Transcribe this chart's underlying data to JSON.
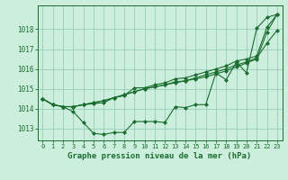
{
  "title": "Graphe pression niveau de la mer (hPa)",
  "background_color": "#cceedd",
  "grid_color": "#99ccbb",
  "line_color": "#1a6e2e",
  "x_ticks": [
    0,
    1,
    2,
    3,
    4,
    5,
    6,
    7,
    8,
    9,
    10,
    11,
    12,
    13,
    14,
    15,
    16,
    17,
    18,
    19,
    20,
    21,
    22,
    23
  ],
  "y_ticks": [
    1013,
    1014,
    1015,
    1016,
    1017,
    1018
  ],
  "ylim": [
    1012.4,
    1019.2
  ],
  "xlim": [
    -0.5,
    23.5
  ],
  "series": [
    [
      1014.5,
      1014.2,
      1014.1,
      1013.85,
      1013.3,
      1012.75,
      1012.7,
      1012.8,
      1012.8,
      1013.35,
      1013.35,
      1013.35,
      1013.3,
      1014.1,
      1014.05,
      1014.2,
      1014.2,
      1015.8,
      1015.45,
      1016.35,
      1015.8,
      1018.05,
      1018.6,
      1018.75
    ],
    [
      1014.5,
      1014.2,
      1014.1,
      1014.1,
      1014.2,
      1014.25,
      1014.3,
      1014.55,
      1014.65,
      1015.05,
      1015.05,
      1015.2,
      1015.3,
      1015.5,
      1015.55,
      1015.7,
      1015.85,
      1016.0,
      1016.15,
      1016.4,
      1016.5,
      1016.65,
      1018.1,
      1018.75
    ],
    [
      1014.5,
      1014.2,
      1014.1,
      1014.1,
      1014.2,
      1014.3,
      1014.4,
      1014.55,
      1014.7,
      1014.85,
      1015.0,
      1015.1,
      1015.2,
      1015.35,
      1015.4,
      1015.55,
      1015.7,
      1015.85,
      1016.0,
      1016.2,
      1016.35,
      1016.55,
      1017.3,
      1017.95
    ],
    [
      1014.5,
      1014.2,
      1014.1,
      1014.1,
      1014.2,
      1014.3,
      1014.4,
      1014.55,
      1014.7,
      1014.85,
      1015.0,
      1015.1,
      1015.2,
      1015.3,
      1015.4,
      1015.5,
      1015.6,
      1015.75,
      1015.9,
      1016.1,
      1016.3,
      1016.5,
      1017.85,
      1018.75
    ]
  ],
  "xlabel": "Graphe pression niveau de la mer (hPa)",
  "xlabel_fontsize": 6.5,
  "ylabel_fontsize": 5.5,
  "xtick_fontsize": 5.0,
  "ytick_fontsize": 5.5,
  "marker_size": 2.0,
  "linewidth": 0.8
}
